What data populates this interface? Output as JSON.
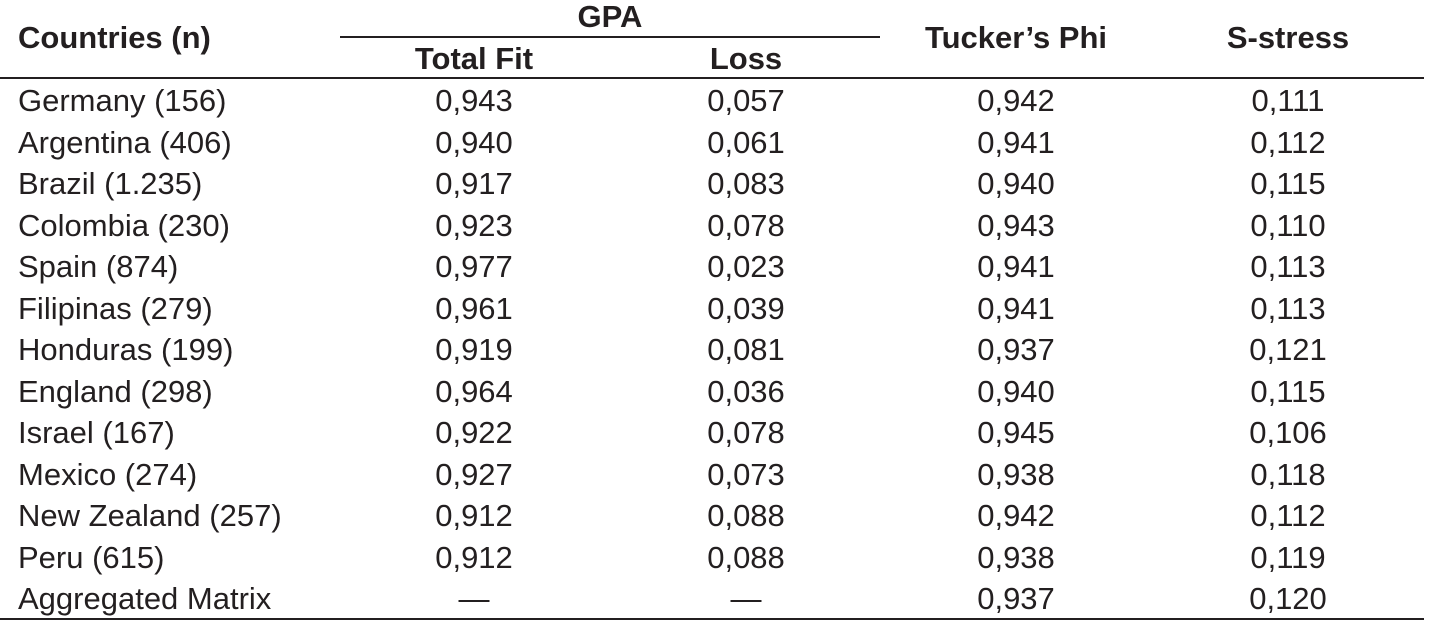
{
  "table": {
    "headers": {
      "countries": "Countries (n)",
      "gpa": "GPA",
      "total_fit": "Total Fit",
      "loss": "Loss",
      "tucker_phi": "Tucker’s Phi",
      "s_stress": "S-stress"
    },
    "rows": [
      {
        "country": "Germany (156)",
        "total_fit": "0,943",
        "loss": "0,057",
        "tucker_phi": "0,942",
        "s_stress": "0,111"
      },
      {
        "country": "Argentina (406)",
        "total_fit": "0,940",
        "loss": "0,061",
        "tucker_phi": "0,941",
        "s_stress": "0,112"
      },
      {
        "country": "Brazil (1.235)",
        "total_fit": "0,917",
        "loss": "0,083",
        "tucker_phi": "0,940",
        "s_stress": "0,115"
      },
      {
        "country": "Colombia (230)",
        "total_fit": "0,923",
        "loss": "0,078",
        "tucker_phi": "0,943",
        "s_stress": "0,110"
      },
      {
        "country": "Spain (874)",
        "total_fit": "0,977",
        "loss": "0,023",
        "tucker_phi": "0,941",
        "s_stress": "0,113"
      },
      {
        "country": "Filipinas (279)",
        "total_fit": "0,961",
        "loss": "0,039",
        "tucker_phi": "0,941",
        "s_stress": "0,113"
      },
      {
        "country": "Honduras (199)",
        "total_fit": "0,919",
        "loss": "0,081",
        "tucker_phi": "0,937",
        "s_stress": "0,121"
      },
      {
        "country": "England (298)",
        "total_fit": "0,964",
        "loss": "0,036",
        "tucker_phi": "0,940",
        "s_stress": "0,115"
      },
      {
        "country": "Israel (167)",
        "total_fit": "0,922",
        "loss": "0,078",
        "tucker_phi": "0,945",
        "s_stress": "0,106"
      },
      {
        "country": "Mexico (274)",
        "total_fit": "0,927",
        "loss": "0,073",
        "tucker_phi": "0,938",
        "s_stress": "0,118"
      },
      {
        "country": "New Zealand (257)",
        "total_fit": "0,912",
        "loss": "0,088",
        "tucker_phi": "0,942",
        "s_stress": "0,112"
      },
      {
        "country": "Peru (615)",
        "total_fit": "0,912",
        "loss": "0,088",
        "tucker_phi": "0,938",
        "s_stress": "0,119"
      },
      {
        "country": "Aggregated Matrix",
        "total_fit": "—",
        "loss": "—",
        "tucker_phi": "0,937",
        "s_stress": "0,120"
      }
    ]
  }
}
